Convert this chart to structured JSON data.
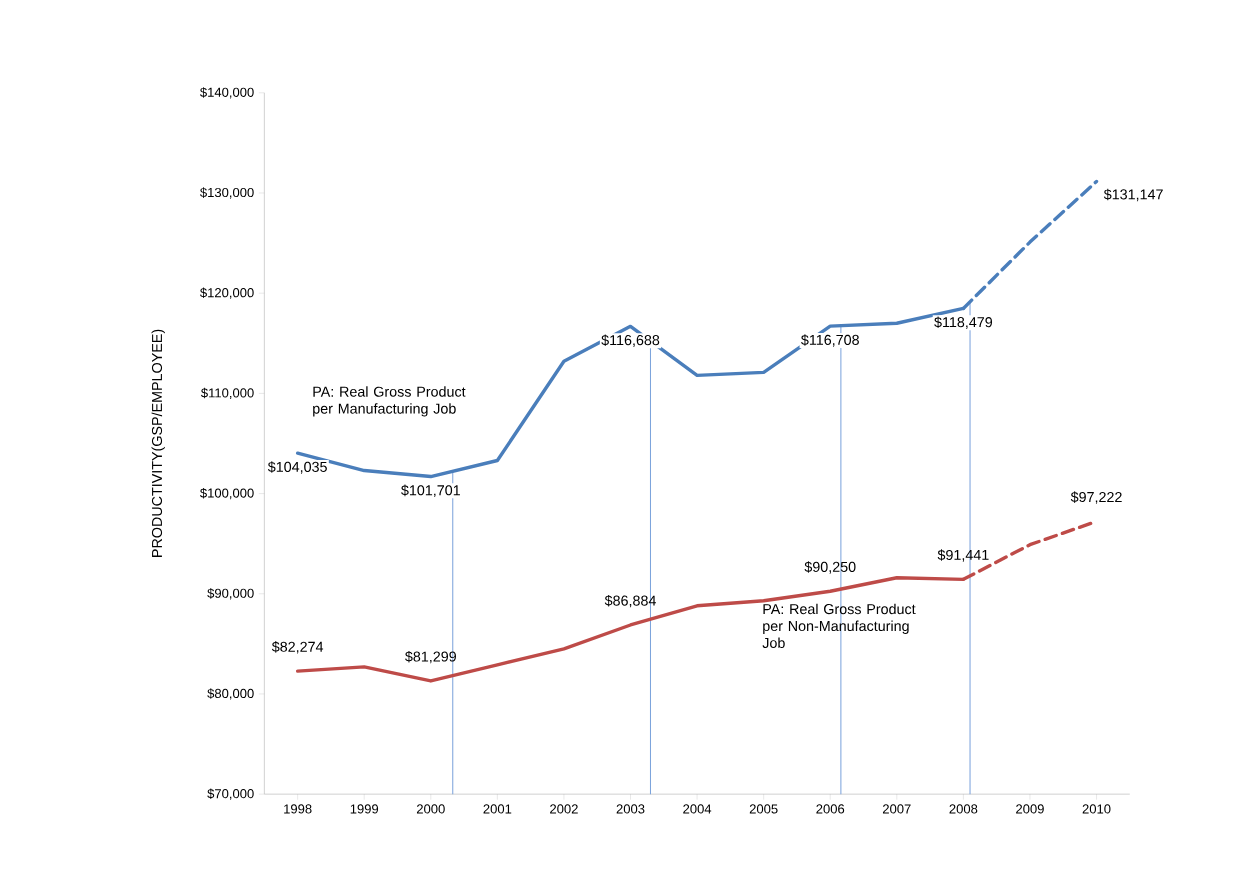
{
  "chart_data": {
    "type": "line",
    "ylabel": "PRODUCTIVITY(GSP/EMPLOYEE)",
    "xlim": [
      1997.5,
      2010.5
    ],
    "xticks": [
      1998,
      1999,
      2000,
      2001,
      2002,
      2003,
      2004,
      2005,
      2006,
      2007,
      2008,
      2009,
      2010
    ],
    "ylim": [
      70000,
      140000
    ],
    "yticks": [
      {
        "value": 70000,
        "label": "$70,000"
      },
      {
        "value": 80000,
        "label": "$80,000"
      },
      {
        "value": 90000,
        "label": "$90,000"
      },
      {
        "value": 100000,
        "label": "$100,000"
      },
      {
        "value": 110000,
        "label": "$110,000"
      },
      {
        "value": 120000,
        "label": "$120,000"
      },
      {
        "value": 130000,
        "label": "$130,000"
      },
      {
        "value": 140000,
        "label": "$140,000"
      }
    ],
    "series": [
      {
        "color": "#4a7ebb",
        "line_style": "solid",
        "x": [
          1998,
          1999,
          2000,
          2001,
          2002,
          2003,
          2004,
          2005,
          2006,
          2007,
          2008
        ],
        "values": [
          104035,
          102300,
          101701,
          103300,
          113200,
          116688,
          111800,
          112100,
          116708,
          117000,
          118479
        ],
        "value_labels": [
          "$104,035",
          null,
          "$101,701",
          null,
          null,
          "$116,688",
          null,
          null,
          "$116,708",
          null,
          "$118,479"
        ]
      },
      {
        "color": "#4a7ebb",
        "line_style": "dashed",
        "x": [
          2008,
          2009,
          2010
        ],
        "values": [
          118479,
          125100,
          131147
        ],
        "value_labels": [
          null,
          null,
          "$131,147"
        ]
      },
      {
        "color": "#be4b48",
        "line_style": "solid",
        "x": [
          1998,
          1999,
          2000,
          2001,
          2002,
          2003,
          2004,
          2005,
          2006,
          2007,
          2008
        ],
        "values": [
          82274,
          82700,
          81299,
          82900,
          84500,
          86884,
          88800,
          89300,
          90250,
          91600,
          91441
        ],
        "value_labels": [
          "$82,274",
          null,
          "$81,299",
          null,
          null,
          "$86,884",
          null,
          null,
          "$90,250",
          null,
          "$91,441"
        ]
      },
      {
        "color": "#be4b48",
        "line_style": "dashed",
        "x": [
          2008,
          2009,
          2010
        ],
        "values": [
          91441,
          94900,
          97222
        ],
        "value_labels": [
          null,
          null,
          "$97,222"
        ]
      }
    ],
    "ref_lines": [
      {
        "axis": "x",
        "value": 2000.33,
        "color": "#7da4dc"
      },
      {
        "axis": "x",
        "value": 2003.3,
        "color": "#7da4dc"
      },
      {
        "axis": "x",
        "value": 2006.16,
        "color": "#7da4dc"
      },
      {
        "axis": "x",
        "value": 2008.1,
        "color": "#7da4dc"
      }
    ],
    "annotations": [
      "PA: Real Gross Product per Manufacturing Job",
      "PA: Real Gross Product per Non-Manufacturing Job"
    ],
    "grid": false,
    "marker": "none"
  }
}
